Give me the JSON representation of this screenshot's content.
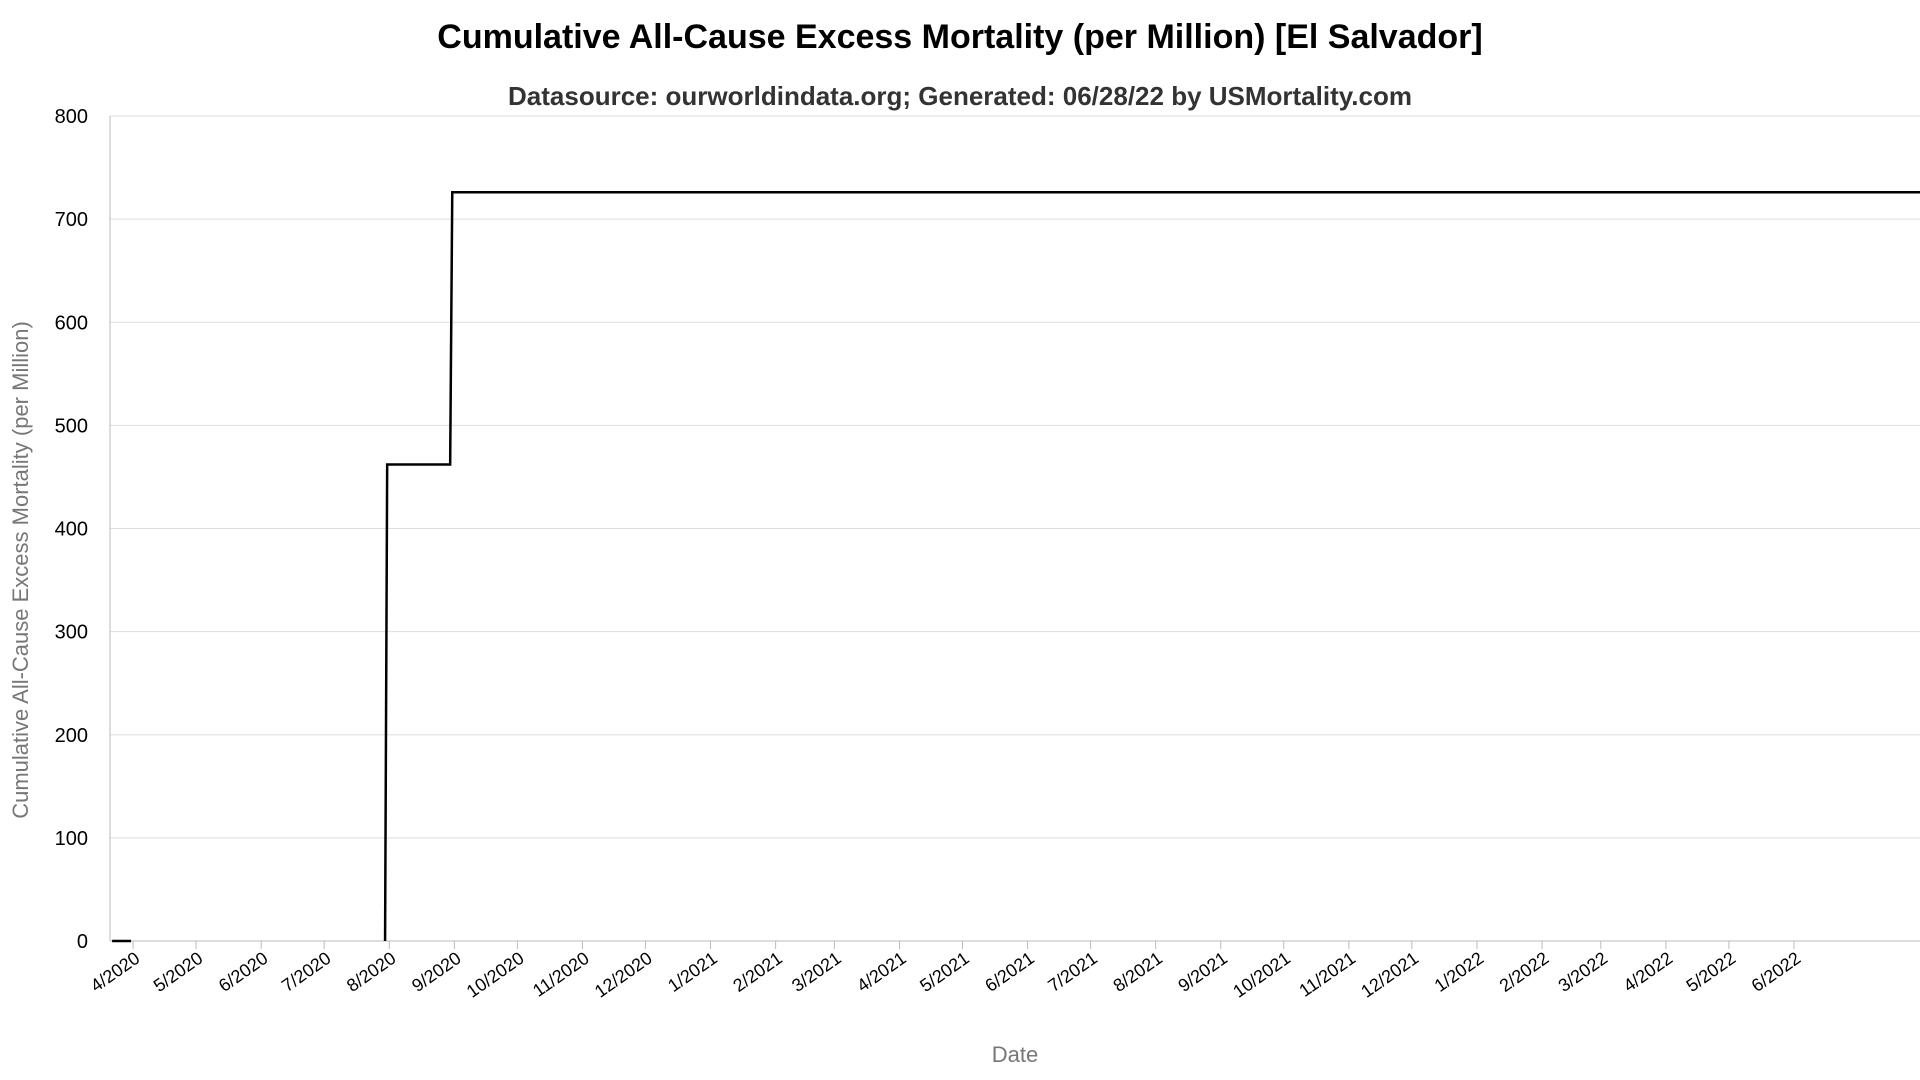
{
  "chart_data": {
    "type": "line",
    "title": "Cumulative All-Cause Excess Mortality (per Million) [El Salvador]",
    "subtitle": "Datasource: ourworldindata.org; Generated: 06/28/22 by USMortality.com",
    "xlabel": "Date",
    "ylabel": "Cumulative All-Cause Excess Mortality (per Million)",
    "ylim": [
      0,
      800
    ],
    "yticks": [
      0,
      100,
      200,
      300,
      400,
      500,
      600,
      700,
      800
    ],
    "xlim": [
      "2020-03-21",
      "2022-07-31"
    ],
    "xticks": [
      {
        "label": "4/2020",
        "date": "2020-04-01"
      },
      {
        "label": "5/2020",
        "date": "2020-05-01"
      },
      {
        "label": "6/2020",
        "date": "2020-06-01"
      },
      {
        "label": "7/2020",
        "date": "2020-07-01"
      },
      {
        "label": "8/2020",
        "date": "2020-08-01"
      },
      {
        "label": "9/2020",
        "date": "2020-09-01"
      },
      {
        "label": "10/2020",
        "date": "2020-10-01"
      },
      {
        "label": "11/2020",
        "date": "2020-11-01"
      },
      {
        "label": "12/2020",
        "date": "2020-12-01"
      },
      {
        "label": "1/2021",
        "date": "2021-01-01"
      },
      {
        "label": "2/2021",
        "date": "2021-02-01"
      },
      {
        "label": "3/2021",
        "date": "2021-03-01"
      },
      {
        "label": "4/2021",
        "date": "2021-04-01"
      },
      {
        "label": "5/2021",
        "date": "2021-05-01"
      },
      {
        "label": "6/2021",
        "date": "2021-06-01"
      },
      {
        "label": "7/2021",
        "date": "2021-07-01"
      },
      {
        "label": "8/2021",
        "date": "2021-08-01"
      },
      {
        "label": "9/2021",
        "date": "2021-09-01"
      },
      {
        "label": "10/2021",
        "date": "2021-10-01"
      },
      {
        "label": "11/2021",
        "date": "2021-11-01"
      },
      {
        "label": "12/2021",
        "date": "2021-12-01"
      },
      {
        "label": "1/2022",
        "date": "2022-01-01"
      },
      {
        "label": "2/2022",
        "date": "2022-02-01"
      },
      {
        "label": "3/2022",
        "date": "2022-03-01"
      },
      {
        "label": "4/2022",
        "date": "2022-04-01"
      },
      {
        "label": "5/2022",
        "date": "2022-05-01"
      },
      {
        "label": "6/2022",
        "date": "2022-06-01"
      }
    ],
    "grid": true,
    "legend": "none",
    "series": [
      {
        "color": "#000000",
        "points": [
          {
            "x": "2020-03-22",
            "y": 0
          },
          {
            "x": "2020-03-31",
            "y": 0
          },
          {
            "x": "2020-07-30",
            "y": 0
          },
          {
            "x": "2020-07-31",
            "y": 462
          },
          {
            "x": "2020-08-30",
            "y": 462
          },
          {
            "x": "2020-08-31",
            "y": 726
          },
          {
            "x": "2022-07-31",
            "y": 726
          }
        ],
        "gaps_after": [
          1
        ]
      }
    ]
  }
}
